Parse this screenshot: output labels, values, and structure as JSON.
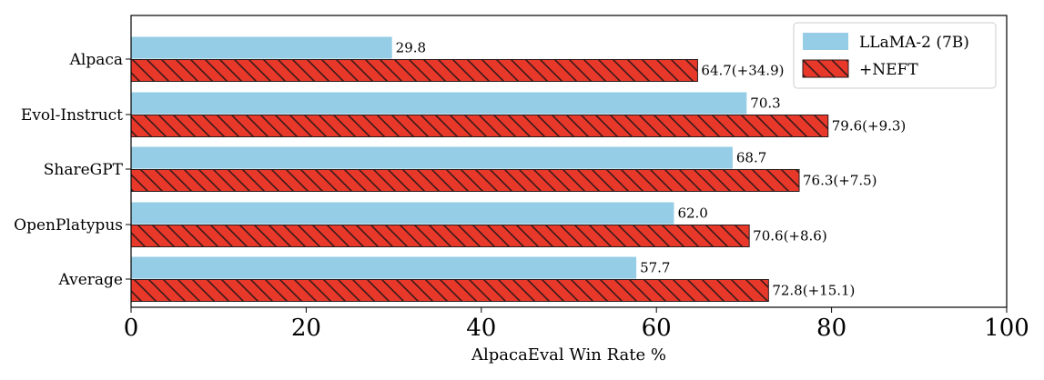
{
  "chart_data": {
    "type": "bar",
    "orientation": "horizontal",
    "categories": [
      "Alpaca",
      "Evol-Instruct",
      "ShareGPT",
      "OpenPlatypus",
      "Average"
    ],
    "series": [
      {
        "name": "LLaMA-2 (7B)",
        "color": "#95cce6",
        "hatch": false,
        "values": [
          29.8,
          70.3,
          68.7,
          62.0,
          57.7
        ],
        "labels": [
          "29.8",
          "70.3",
          "68.7",
          "62.0",
          "57.7"
        ]
      },
      {
        "name": "+NEFT",
        "color": "#e8382a",
        "hatch": true,
        "values": [
          64.7,
          79.6,
          76.3,
          70.6,
          72.8
        ],
        "labels": [
          "64.7(+34.9)",
          "79.6(+9.3)",
          "76.3(+7.5)",
          "70.6(+8.6)",
          "72.8(+15.1)"
        ]
      }
    ],
    "xlabel": "AlpacaEval Win Rate %",
    "ylabel": "",
    "xlim": [
      0,
      100
    ],
    "xticks": [
      0,
      20,
      40,
      60,
      80,
      100
    ],
    "grid": false,
    "legend_position": "top-right"
  }
}
